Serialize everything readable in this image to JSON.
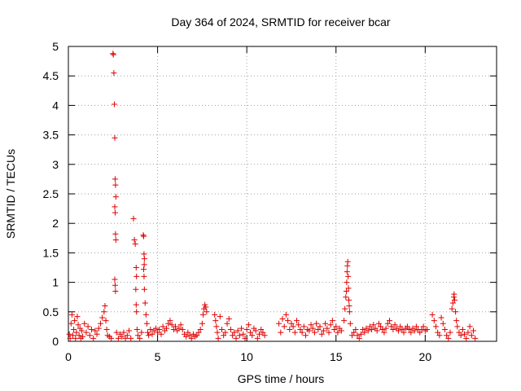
{
  "chart_data": {
    "type": "scatter",
    "title": "Day 364 of 2024, SRMTID for receiver bcar",
    "xlabel": "GPS time / hours",
    "ylabel": "SRMTID / TECUs",
    "xlim": [
      0,
      24
    ],
    "ylim": [
      0,
      5
    ],
    "x_ticks": [
      0,
      5,
      10,
      15,
      20
    ],
    "x_tick_labels": [
      "0",
      "5",
      "10",
      "15",
      "20"
    ],
    "y_ticks": [
      0,
      0.5,
      1,
      1.5,
      2,
      2.5,
      3,
      3.5,
      4,
      4.5,
      5
    ],
    "y_tick_labels": [
      "0",
      "0.5",
      "1",
      "1.5",
      "2",
      "2.5",
      "3",
      "3.5",
      "4",
      "4.5",
      "5"
    ],
    "grid": true,
    "marker": "+",
    "series_color": "#e00000",
    "series": [
      {
        "name": "SRMTID",
        "points": [
          [
            0.05,
            0.12
          ],
          [
            0.1,
            0.05
          ],
          [
            0.15,
            0.3
          ],
          [
            0.2,
            0.45
          ],
          [
            0.25,
            0.1
          ],
          [
            0.3,
            0.2
          ],
          [
            0.35,
            0.35
          ],
          [
            0.4,
            0.05
          ],
          [
            0.45,
            0.15
          ],
          [
            0.5,
            0.42
          ],
          [
            0.55,
            0.28
          ],
          [
            0.6,
            0.1
          ],
          [
            0.65,
            0.22
          ],
          [
            0.7,
            0.05
          ],
          [
            0.75,
            0.18
          ],
          [
            0.8,
            0.08
          ],
          [
            0.9,
            0.3
          ],
          [
            1.0,
            0.15
          ],
          [
            1.1,
            0.25
          ],
          [
            1.2,
            0.1
          ],
          [
            1.3,
            0.2
          ],
          [
            1.4,
            0.05
          ],
          [
            1.5,
            0.18
          ],
          [
            1.6,
            0.12
          ],
          [
            1.7,
            0.22
          ],
          [
            1.8,
            0.3
          ],
          [
            1.9,
            0.4
          ],
          [
            2.0,
            0.5
          ],
          [
            2.05,
            0.6
          ],
          [
            2.1,
            0.35
          ],
          [
            2.15,
            0.2
          ],
          [
            2.2,
            0.1
          ],
          [
            2.3,
            0.08
          ],
          [
            2.4,
            0.05
          ],
          [
            2.5,
            4.88
          ],
          [
            2.52,
            4.86
          ],
          [
            2.55,
            4.55
          ],
          [
            2.58,
            4.02
          ],
          [
            2.6,
            3.45
          ],
          [
            2.62,
            2.75
          ],
          [
            2.64,
            2.65
          ],
          [
            2.66,
            2.45
          ],
          [
            2.6,
            2.28
          ],
          [
            2.62,
            2.18
          ],
          [
            2.64,
            1.82
          ],
          [
            2.66,
            1.72
          ],
          [
            2.6,
            1.05
          ],
          [
            2.62,
            0.95
          ],
          [
            2.64,
            0.85
          ],
          [
            2.7,
            0.15
          ],
          [
            2.8,
            0.05
          ],
          [
            2.9,
            0.12
          ],
          [
            3.0,
            0.08
          ],
          [
            3.1,
            0.15
          ],
          [
            3.2,
            0.05
          ],
          [
            3.3,
            0.1
          ],
          [
            3.4,
            0.18
          ],
          [
            3.5,
            0.05
          ],
          [
            3.65,
            2.08
          ],
          [
            3.7,
            1.72
          ],
          [
            3.75,
            1.65
          ],
          [
            3.8,
            1.25
          ],
          [
            3.82,
            1.1
          ],
          [
            3.78,
            0.88
          ],
          [
            3.8,
            0.62
          ],
          [
            3.82,
            0.5
          ],
          [
            3.85,
            0.2
          ],
          [
            3.9,
            0.1
          ],
          [
            4.0,
            0.05
          ],
          [
            4.1,
            0.15
          ],
          [
            4.2,
            1.8
          ],
          [
            4.22,
            1.78
          ],
          [
            4.24,
            1.48
          ],
          [
            4.26,
            1.4
          ],
          [
            4.25,
            1.3
          ],
          [
            4.22,
            1.22
          ],
          [
            4.24,
            1.1
          ],
          [
            4.26,
            0.88
          ],
          [
            4.3,
            0.65
          ],
          [
            4.35,
            0.45
          ],
          [
            4.4,
            0.3
          ],
          [
            4.45,
            0.15
          ],
          [
            4.5,
            0.1
          ],
          [
            4.6,
            0.2
          ],
          [
            4.7,
            0.12
          ],
          [
            4.8,
            0.18
          ],
          [
            4.9,
            0.22
          ],
          [
            5.0,
            0.15
          ],
          [
            5.1,
            0.2
          ],
          [
            5.2,
            0.12
          ],
          [
            5.3,
            0.25
          ],
          [
            5.4,
            0.18
          ],
          [
            5.5,
            0.22
          ],
          [
            5.6,
            0.3
          ],
          [
            5.7,
            0.35
          ],
          [
            5.8,
            0.28
          ],
          [
            5.9,
            0.2
          ],
          [
            6.0,
            0.25
          ],
          [
            6.1,
            0.18
          ],
          [
            6.2,
            0.22
          ],
          [
            6.3,
            0.28
          ],
          [
            6.4,
            0.2
          ],
          [
            6.5,
            0.12
          ],
          [
            6.6,
            0.08
          ],
          [
            6.7,
            0.15
          ],
          [
            6.8,
            0.1
          ],
          [
            6.9,
            0.05
          ],
          [
            7.0,
            0.12
          ],
          [
            7.1,
            0.08
          ],
          [
            7.2,
            0.1
          ],
          [
            7.3,
            0.15
          ],
          [
            7.4,
            0.2
          ],
          [
            7.5,
            0.3
          ],
          [
            7.55,
            0.45
          ],
          [
            7.6,
            0.55
          ],
          [
            7.65,
            0.62
          ],
          [
            7.7,
            0.58
          ],
          [
            7.75,
            0.5
          ],
          [
            8.2,
            0.45
          ],
          [
            8.25,
            0.35
          ],
          [
            8.3,
            0.25
          ],
          [
            8.35,
            0.15
          ],
          [
            8.4,
            0.05
          ],
          [
            8.5,
            0.42
          ],
          [
            8.6,
            0.2
          ],
          [
            8.7,
            0.1
          ],
          [
            8.8,
            0.15
          ],
          [
            8.9,
            0.3
          ],
          [
            9.0,
            0.38
          ],
          [
            9.1,
            0.2
          ],
          [
            9.2,
            0.1
          ],
          [
            9.3,
            0.15
          ],
          [
            9.4,
            0.05
          ],
          [
            9.5,
            0.18
          ],
          [
            9.6,
            0.1
          ],
          [
            9.7,
            0.22
          ],
          [
            9.8,
            0.12
          ],
          [
            9.9,
            0.05
          ],
          [
            10.0,
            0.2
          ],
          [
            10.1,
            0.28
          ],
          [
            10.2,
            0.15
          ],
          [
            10.3,
            0.1
          ],
          [
            10.4,
            0.22
          ],
          [
            10.5,
            0.18
          ],
          [
            10.6,
            0.05
          ],
          [
            10.7,
            0.12
          ],
          [
            10.8,
            0.2
          ],
          [
            10.9,
            0.15
          ],
          [
            11.0,
            0.1
          ],
          [
            11.8,
            0.3
          ],
          [
            11.9,
            0.15
          ],
          [
            12.0,
            0.38
          ],
          [
            12.1,
            0.25
          ],
          [
            12.2,
            0.45
          ],
          [
            12.3,
            0.35
          ],
          [
            12.4,
            0.2
          ],
          [
            12.5,
            0.3
          ],
          [
            12.6,
            0.25
          ],
          [
            12.7,
            0.15
          ],
          [
            12.8,
            0.35
          ],
          [
            12.9,
            0.28
          ],
          [
            13.0,
            0.2
          ],
          [
            13.1,
            0.15
          ],
          [
            13.2,
            0.25
          ],
          [
            13.3,
            0.1
          ],
          [
            13.4,
            0.2
          ],
          [
            13.5,
            0.18
          ],
          [
            13.6,
            0.28
          ],
          [
            13.7,
            0.22
          ],
          [
            13.8,
            0.15
          ],
          [
            13.9,
            0.3
          ],
          [
            14.0,
            0.2
          ],
          [
            14.1,
            0.25
          ],
          [
            14.2,
            0.12
          ],
          [
            14.3,
            0.18
          ],
          [
            14.4,
            0.3
          ],
          [
            14.5,
            0.22
          ],
          [
            14.6,
            0.15
          ],
          [
            14.7,
            0.28
          ],
          [
            14.8,
            0.35
          ],
          [
            14.9,
            0.2
          ],
          [
            15.0,
            0.25
          ],
          [
            15.1,
            0.15
          ],
          [
            15.2,
            0.22
          ],
          [
            15.3,
            0.18
          ],
          [
            15.45,
            0.35
          ],
          [
            15.5,
            0.55
          ],
          [
            15.55,
            0.75
          ],
          [
            15.58,
            0.85
          ],
          [
            15.6,
            1.0
          ],
          [
            15.62,
            1.18
          ],
          [
            15.64,
            1.28
          ],
          [
            15.66,
            1.35
          ],
          [
            15.68,
            1.1
          ],
          [
            15.7,
            0.9
          ],
          [
            15.72,
            0.7
          ],
          [
            15.74,
            0.6
          ],
          [
            15.76,
            0.5
          ],
          [
            15.8,
            0.3
          ],
          [
            15.9,
            0.1
          ],
          [
            16.0,
            0.15
          ],
          [
            16.1,
            0.2
          ],
          [
            16.2,
            0.1
          ],
          [
            16.3,
            0.05
          ],
          [
            16.4,
            0.12
          ],
          [
            16.5,
            0.2
          ],
          [
            16.6,
            0.15
          ],
          [
            16.7,
            0.22
          ],
          [
            16.8,
            0.18
          ],
          [
            16.9,
            0.25
          ],
          [
            17.0,
            0.2
          ],
          [
            17.1,
            0.28
          ],
          [
            17.2,
            0.22
          ],
          [
            17.3,
            0.18
          ],
          [
            17.4,
            0.3
          ],
          [
            17.5,
            0.25
          ],
          [
            17.6,
            0.2
          ],
          [
            17.7,
            0.15
          ],
          [
            17.8,
            0.22
          ],
          [
            17.9,
            0.3
          ],
          [
            18.0,
            0.35
          ],
          [
            18.1,
            0.25
          ],
          [
            18.2,
            0.2
          ],
          [
            18.3,
            0.28
          ],
          [
            18.4,
            0.22
          ],
          [
            18.5,
            0.18
          ],
          [
            18.6,
            0.25
          ],
          [
            18.7,
            0.2
          ],
          [
            18.8,
            0.15
          ],
          [
            18.9,
            0.22
          ],
          [
            19.0,
            0.25
          ],
          [
            19.1,
            0.2
          ],
          [
            19.2,
            0.15
          ],
          [
            19.3,
            0.22
          ],
          [
            19.4,
            0.18
          ],
          [
            19.5,
            0.25
          ],
          [
            19.6,
            0.2
          ],
          [
            19.7,
            0.15
          ],
          [
            19.8,
            0.2
          ],
          [
            19.9,
            0.25
          ],
          [
            20.0,
            0.18
          ],
          [
            20.1,
            0.2
          ],
          [
            20.4,
            0.45
          ],
          [
            20.5,
            0.35
          ],
          [
            20.6,
            0.25
          ],
          [
            20.7,
            0.15
          ],
          [
            20.8,
            0.1
          ],
          [
            20.9,
            0.4
          ],
          [
            21.0,
            0.3
          ],
          [
            21.1,
            0.2
          ],
          [
            21.2,
            0.1
          ],
          [
            21.3,
            0.05
          ],
          [
            21.4,
            0.15
          ],
          [
            21.5,
            0.55
          ],
          [
            21.55,
            0.65
          ],
          [
            21.6,
            0.75
          ],
          [
            21.62,
            0.8
          ],
          [
            21.65,
            0.7
          ],
          [
            21.7,
            0.5
          ],
          [
            21.75,
            0.35
          ],
          [
            21.8,
            0.25
          ],
          [
            21.9,
            0.15
          ],
          [
            22.0,
            0.1
          ],
          [
            22.1,
            0.2
          ],
          [
            22.2,
            0.12
          ],
          [
            22.3,
            0.05
          ],
          [
            22.4,
            0.15
          ],
          [
            22.5,
            0.25
          ],
          [
            22.6,
            0.1
          ],
          [
            22.7,
            0.18
          ],
          [
            22.8,
            0.05
          ]
        ]
      }
    ]
  }
}
